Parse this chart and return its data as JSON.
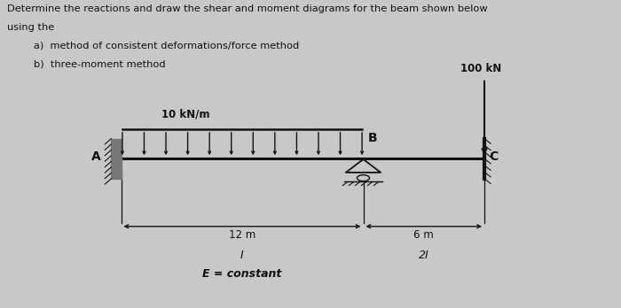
{
  "bg_color": "#c8c8c8",
  "title_line1": "Determine the reactions and draw the shear and moment diagrams for the beam shown below",
  "title_line2": "using the",
  "title_line3": "a)  method of consistent deformations/force method",
  "title_line4": "b)  three-moment method",
  "label_A": "A",
  "label_B": "B",
  "label_C": "C",
  "load_label": "10 kN/m",
  "point_load_label": "100 kN",
  "dim_label_left": "12 m",
  "dim_label_right": "6 m",
  "moment_I_left": "I",
  "moment_I_right": "2I",
  "E_label": "E = constant",
  "text_color": "#111111",
  "beam_color": "#111111",
  "bx0": 0.195,
  "bxB": 0.585,
  "bxC": 0.78,
  "by": 0.485
}
